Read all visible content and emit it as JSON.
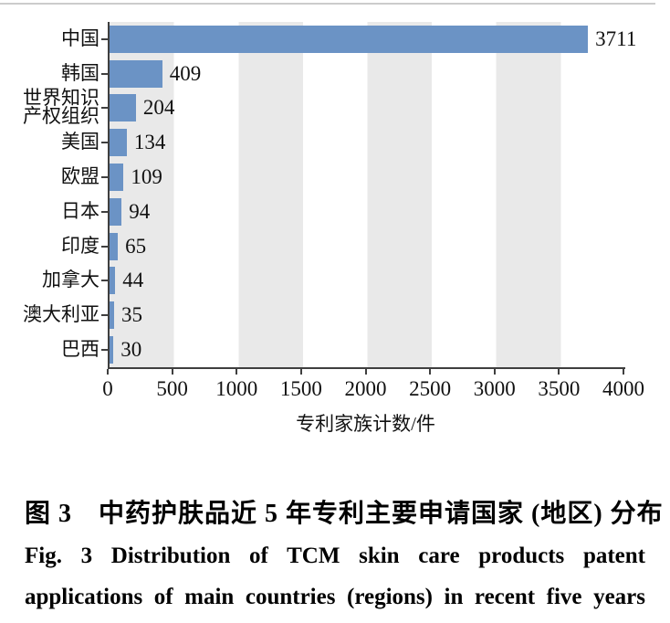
{
  "chart_data": {
    "type": "bar",
    "orientation": "horizontal",
    "title": "",
    "categories": [
      "中国",
      "韩国",
      "世界知识\n产权组织",
      "美国",
      "欧盟",
      "日本",
      "印度",
      "加拿大",
      "澳大利亚",
      "巴西"
    ],
    "values": [
      3711,
      409,
      204,
      134,
      109,
      94,
      65,
      44,
      35,
      30
    ],
    "xlabel": "专利家族计数/件",
    "ylabel": "",
    "xlim": [
      0,
      4000
    ],
    "xticks": [
      0,
      500,
      1000,
      1500,
      2000,
      2500,
      3000,
      3500,
      4000
    ],
    "legend": "none",
    "grid": "alternating vertical background bands every 500 units, starting gray at 0",
    "colors": {
      "bar": "#6b93c5",
      "band_gray": "#e9e9e9",
      "band_white": "#ffffff",
      "axis": "#3f3f3f",
      "text": "#111111"
    }
  },
  "caption": {
    "zh": "图 3　中药护肤品近 5 年专利主要申请国家 (地区) 分布",
    "en_line1": "Fig. 3 Distribution of TCM skin care products patent",
    "en_line2": "applications of main countries (regions) in recent five years"
  }
}
